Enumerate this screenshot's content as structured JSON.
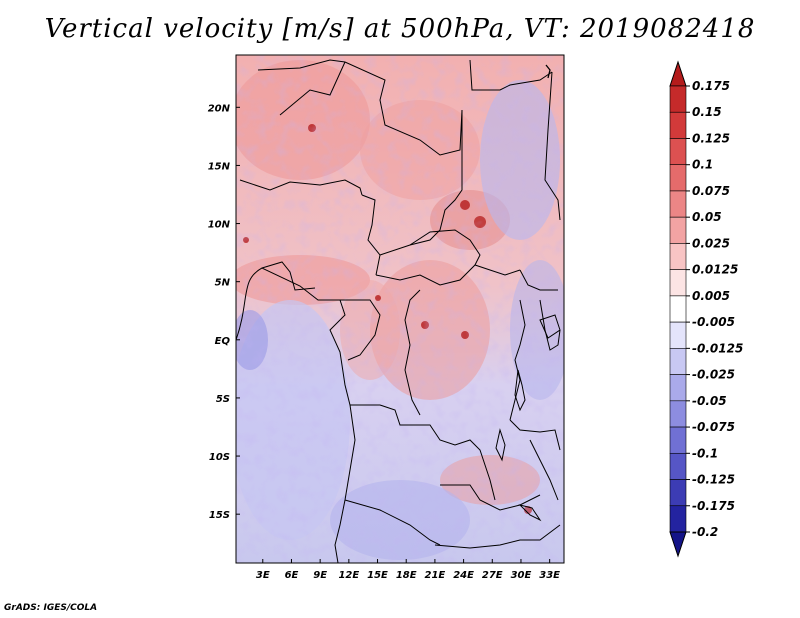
{
  "title": "Vertical velocity [m/s] at 500hPa, VT: 2019082418",
  "credit": "GrADS: IGES/COLA",
  "map": {
    "lat_labels": [
      "20N",
      "15N",
      "10N",
      "5N",
      "EQ",
      "5S",
      "10S",
      "15S"
    ],
    "lon_labels": [
      "3E",
      "6E",
      "9E",
      "12E",
      "15E",
      "18E",
      "21E",
      "24E",
      "27E",
      "30E",
      "33E"
    ],
    "lat_range": [
      -19.2,
      24.5
    ],
    "lon_range": [
      0.2,
      34.5
    ]
  },
  "colorbar": {
    "labels": [
      "0.175",
      "0.15",
      "0.125",
      "0.1",
      "0.075",
      "0.05",
      "0.025",
      "0.0125",
      "0.005",
      "-0.005",
      "-0.0125",
      "-0.025",
      "-0.05",
      "-0.075",
      "-0.1",
      "-0.125",
      "-0.175",
      "-0.2"
    ],
    "colors": [
      "#b41c1c",
      "#c52a2a",
      "#d23a3a",
      "#dc5151",
      "#e56b6b",
      "#ec8686",
      "#f2a3a3",
      "#f8c4c4",
      "#fce4e4",
      "#ffffff",
      "#e4e4fb",
      "#c8c8f3",
      "#aaaaea",
      "#8d8de0",
      "#7070d4",
      "#5656c6",
      "#3c3cb4",
      "#2323a0",
      "#141488"
    ]
  }
}
